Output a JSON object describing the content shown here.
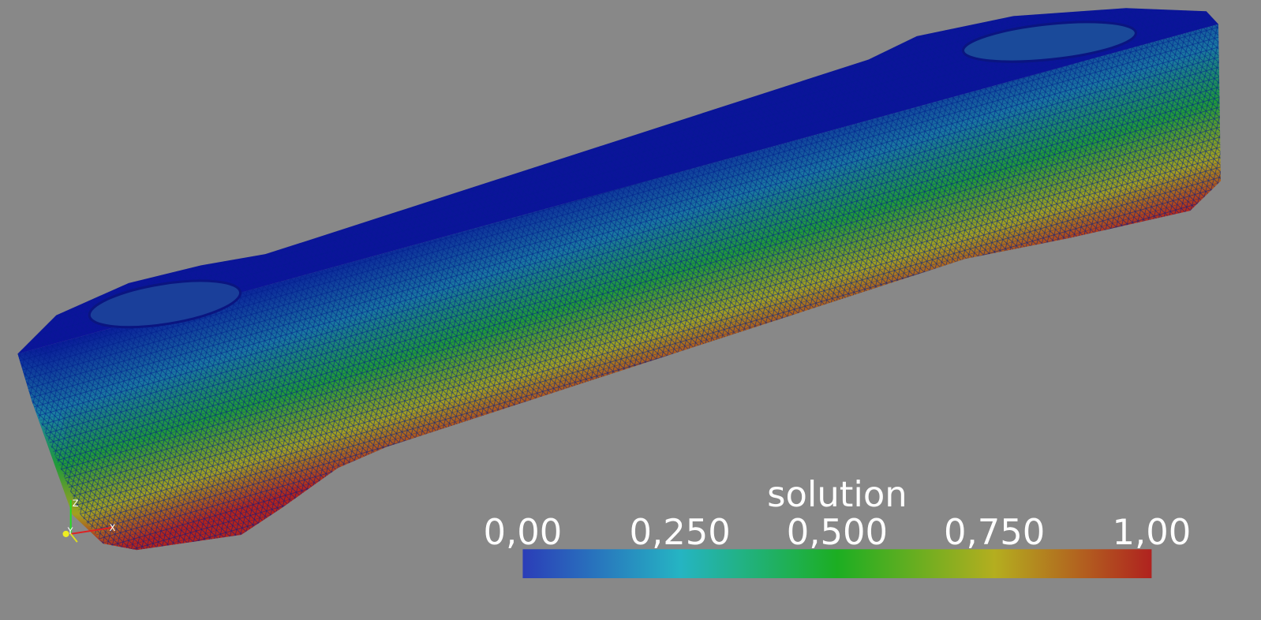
{
  "scene": {
    "axes_labels": [
      "Z",
      "Y",
      "X"
    ]
  },
  "color_legend": {
    "title": "solution",
    "range": [
      0,
      1
    ],
    "ticks": [
      {
        "value": 0,
        "label": "0,00"
      },
      {
        "value": 0.25,
        "label": "0,250"
      },
      {
        "value": 0.5,
        "label": "0,500"
      },
      {
        "value": 0.75,
        "label": "0,750"
      },
      {
        "value": 1,
        "label": "1,00"
      }
    ],
    "colormap": [
      "#2b3db8",
      "#25b4c3",
      "#1cae22",
      "#b4ae1f",
      "#b0221f"
    ]
  }
}
